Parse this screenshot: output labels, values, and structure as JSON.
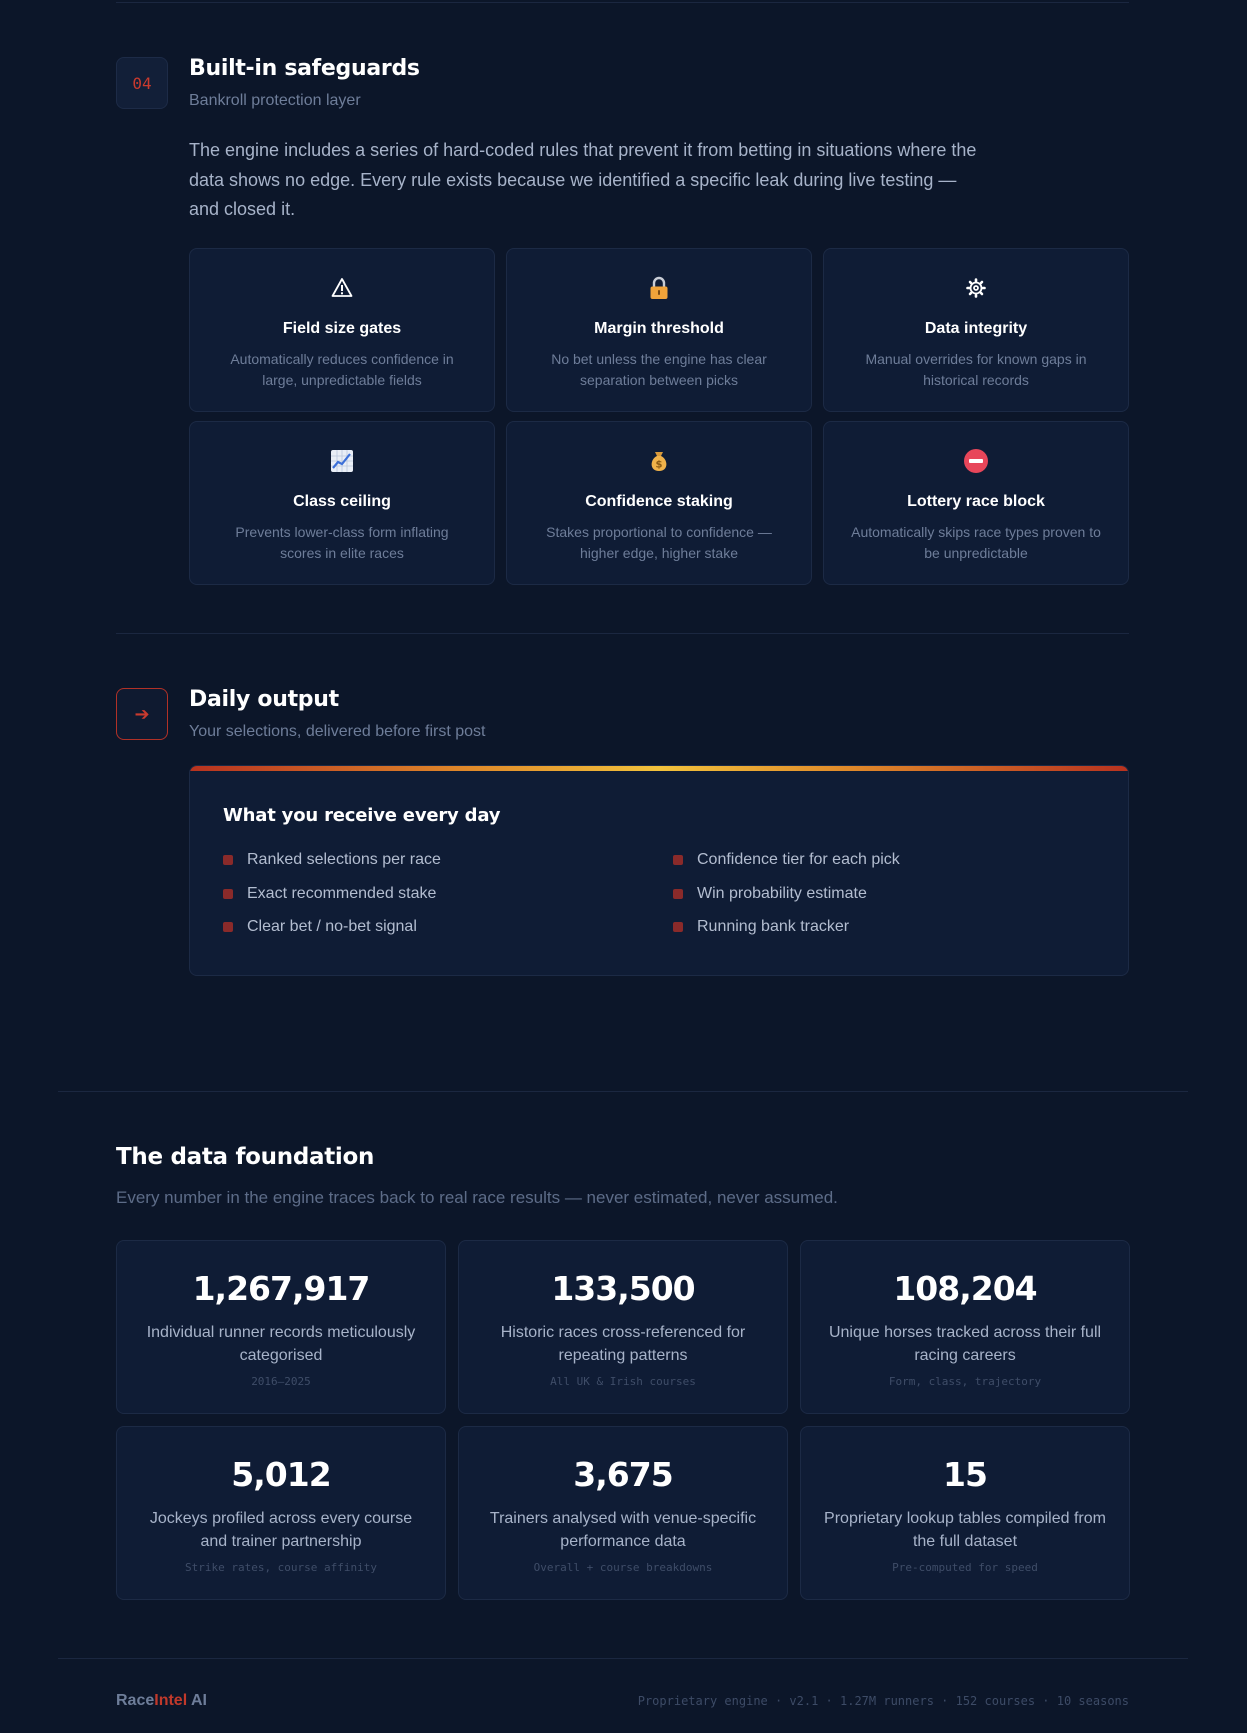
{
  "safeguards": {
    "badge": "04",
    "title": "Built-in safeguards",
    "subtitle": "Bankroll protection layer",
    "intro": "The engine includes a series of hard-coded rules that prevent it from betting in situations where the data shows no edge. Every rule exists because we identified a specific leak during live testing — and closed it.",
    "cards": [
      {
        "icon": "warning-icon",
        "title": "Field size gates",
        "desc": "Automatically reduces confidence in large, unpredictable fields"
      },
      {
        "icon": "lock-icon",
        "title": "Margin threshold",
        "desc": "No bet unless the engine has clear separation between picks"
      },
      {
        "icon": "gear-icon",
        "title": "Data integrity",
        "desc": "Manual overrides for known gaps in historical records"
      },
      {
        "icon": "chart-icon",
        "title": "Class ceiling",
        "desc": "Prevents lower-class form inflating scores in elite races"
      },
      {
        "icon": "money-bag-icon",
        "title": "Confidence staking",
        "desc": "Stakes proportional to confidence — higher edge, higher stake"
      },
      {
        "icon": "no-entry-icon",
        "title": "Lottery race block",
        "desc": "Automatically skips race types proven to be unpredictable"
      }
    ]
  },
  "daily": {
    "badge_icon": "arrow-right-icon",
    "title": "Daily output",
    "subtitle": "Your selections, delivered before first post",
    "card_title": "What you receive every day",
    "items_left": [
      "Ranked selections per race",
      "Exact recommended stake",
      "Clear bet / no-bet signal"
    ],
    "items_right": [
      "Confidence tier for each pick",
      "Win probability estimate",
      "Running bank tracker"
    ]
  },
  "foundation": {
    "title": "The data foundation",
    "subtitle": "Every number in the engine traces back to real race results — never estimated, never assumed.",
    "stats": [
      {
        "num": "1,267,917",
        "desc": "Individual runner records meticulously categorised",
        "note": "2016–2025"
      },
      {
        "num": "133,500",
        "desc": "Historic races cross-referenced for repeating patterns",
        "note": "All UK & Irish courses"
      },
      {
        "num": "108,204",
        "desc": "Unique horses tracked across their full racing careers",
        "note": "Form, class, trajectory"
      },
      {
        "num": "5,012",
        "desc": "Jockeys profiled across every course and trainer partnership",
        "note": "Strike rates, course affinity"
      },
      {
        "num": "3,675",
        "desc": "Trainers analysed with venue-specific performance data",
        "note": "Overall + course breakdowns"
      },
      {
        "num": "15",
        "desc": "Proprietary lookup tables compiled from the full dataset",
        "note": "Pre-computed for speed"
      }
    ]
  },
  "footer": {
    "brand_a": "Race",
    "brand_b": "Intel",
    "brand_c": " AI",
    "meta": "Proprietary engine · v2.1 · 1.27M runners · 152 courses · 10 seasons"
  }
}
